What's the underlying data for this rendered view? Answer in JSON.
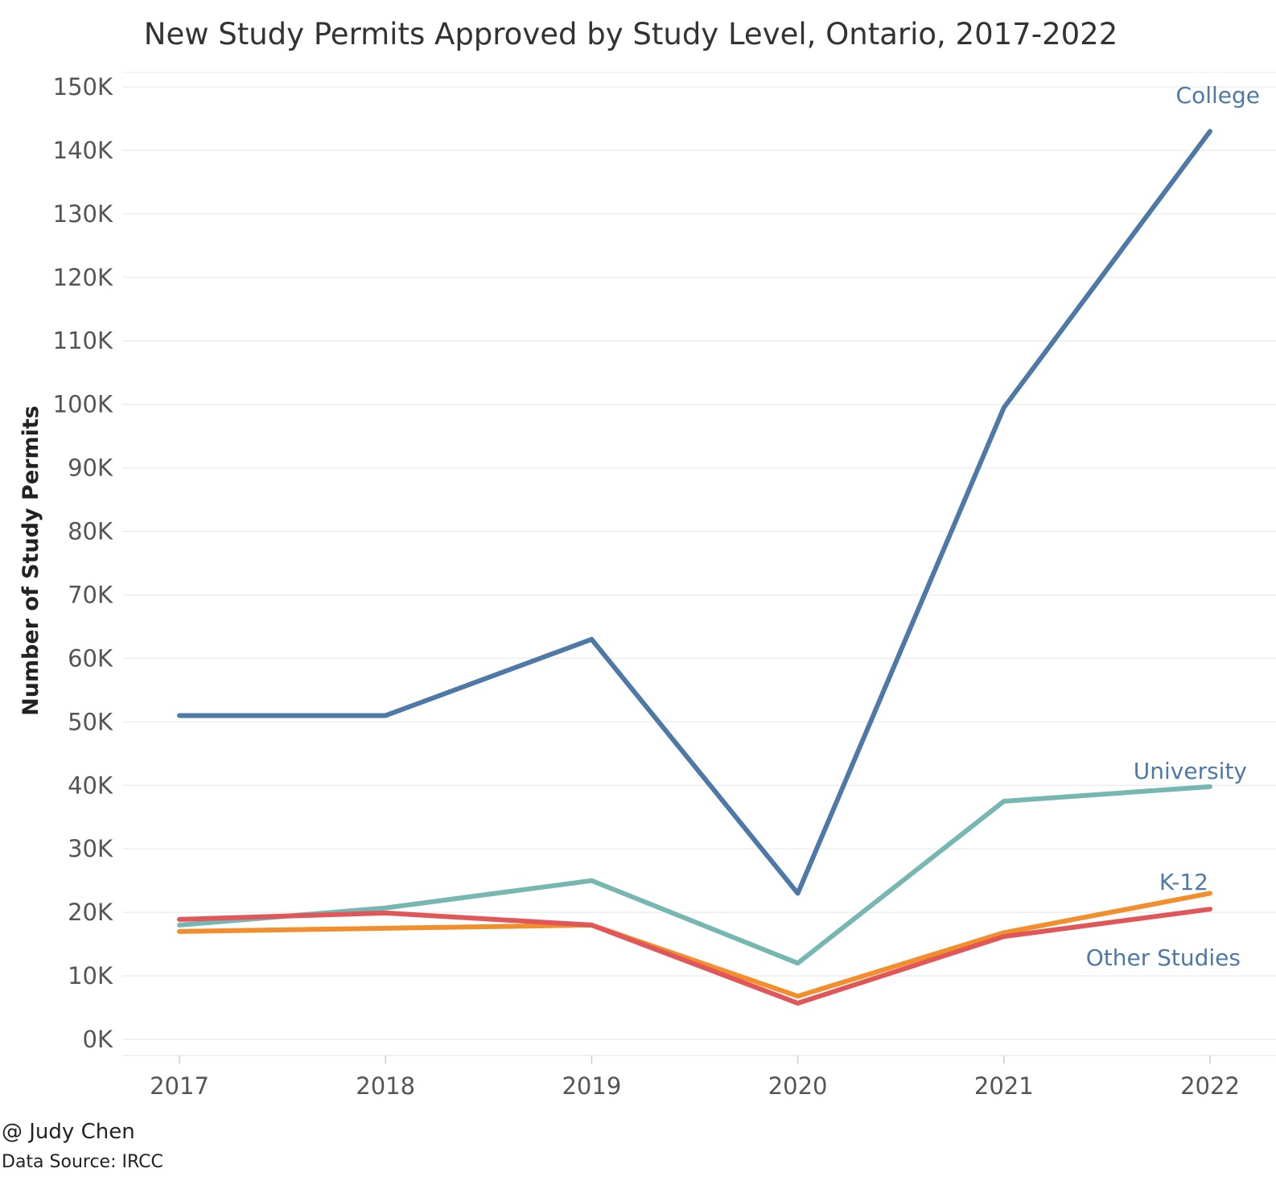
{
  "chart_data": {
    "type": "line",
    "title": "New Study Permits Approved by Study Level, Ontario, 2017-2022",
    "xlabel": "",
    "ylabel": "Number of Study Permits",
    "x": [
      "2017",
      "2018",
      "2019",
      "2020",
      "2021",
      "2022"
    ],
    "y_ticks": [
      "0K",
      "10K",
      "20K",
      "30K",
      "40K",
      "50K",
      "60K",
      "70K",
      "80K",
      "90K",
      "100K",
      "110K",
      "120K",
      "130K",
      "140K",
      "150K"
    ],
    "ylim": [
      0,
      150000
    ],
    "grid": "horizontal",
    "legend": "direct labels at line ends",
    "series": [
      {
        "name": "College",
        "color": "#4e79a7",
        "label_color": "#4e79a7",
        "values": [
          51000,
          51000,
          63000,
          23000,
          99500,
          143000
        ]
      },
      {
        "name": "University",
        "color": "#76b7b2",
        "label_color": "#4e79a7",
        "values": [
          18000,
          20700,
          25000,
          12000,
          37500,
          39800
        ]
      },
      {
        "name": "K-12",
        "color": "#f28e2b",
        "label_color": "#4e79a7",
        "values": [
          17000,
          17500,
          18000,
          6800,
          16800,
          23000
        ]
      },
      {
        "name": "Other Studies",
        "color": "#e15759",
        "label_color": "#4e79a7",
        "values": [
          18900,
          19900,
          18000,
          5700,
          16200,
          20500
        ]
      }
    ]
  },
  "credits": {
    "author": "@ Judy Chen",
    "source": "Data Source: IRCC"
  }
}
